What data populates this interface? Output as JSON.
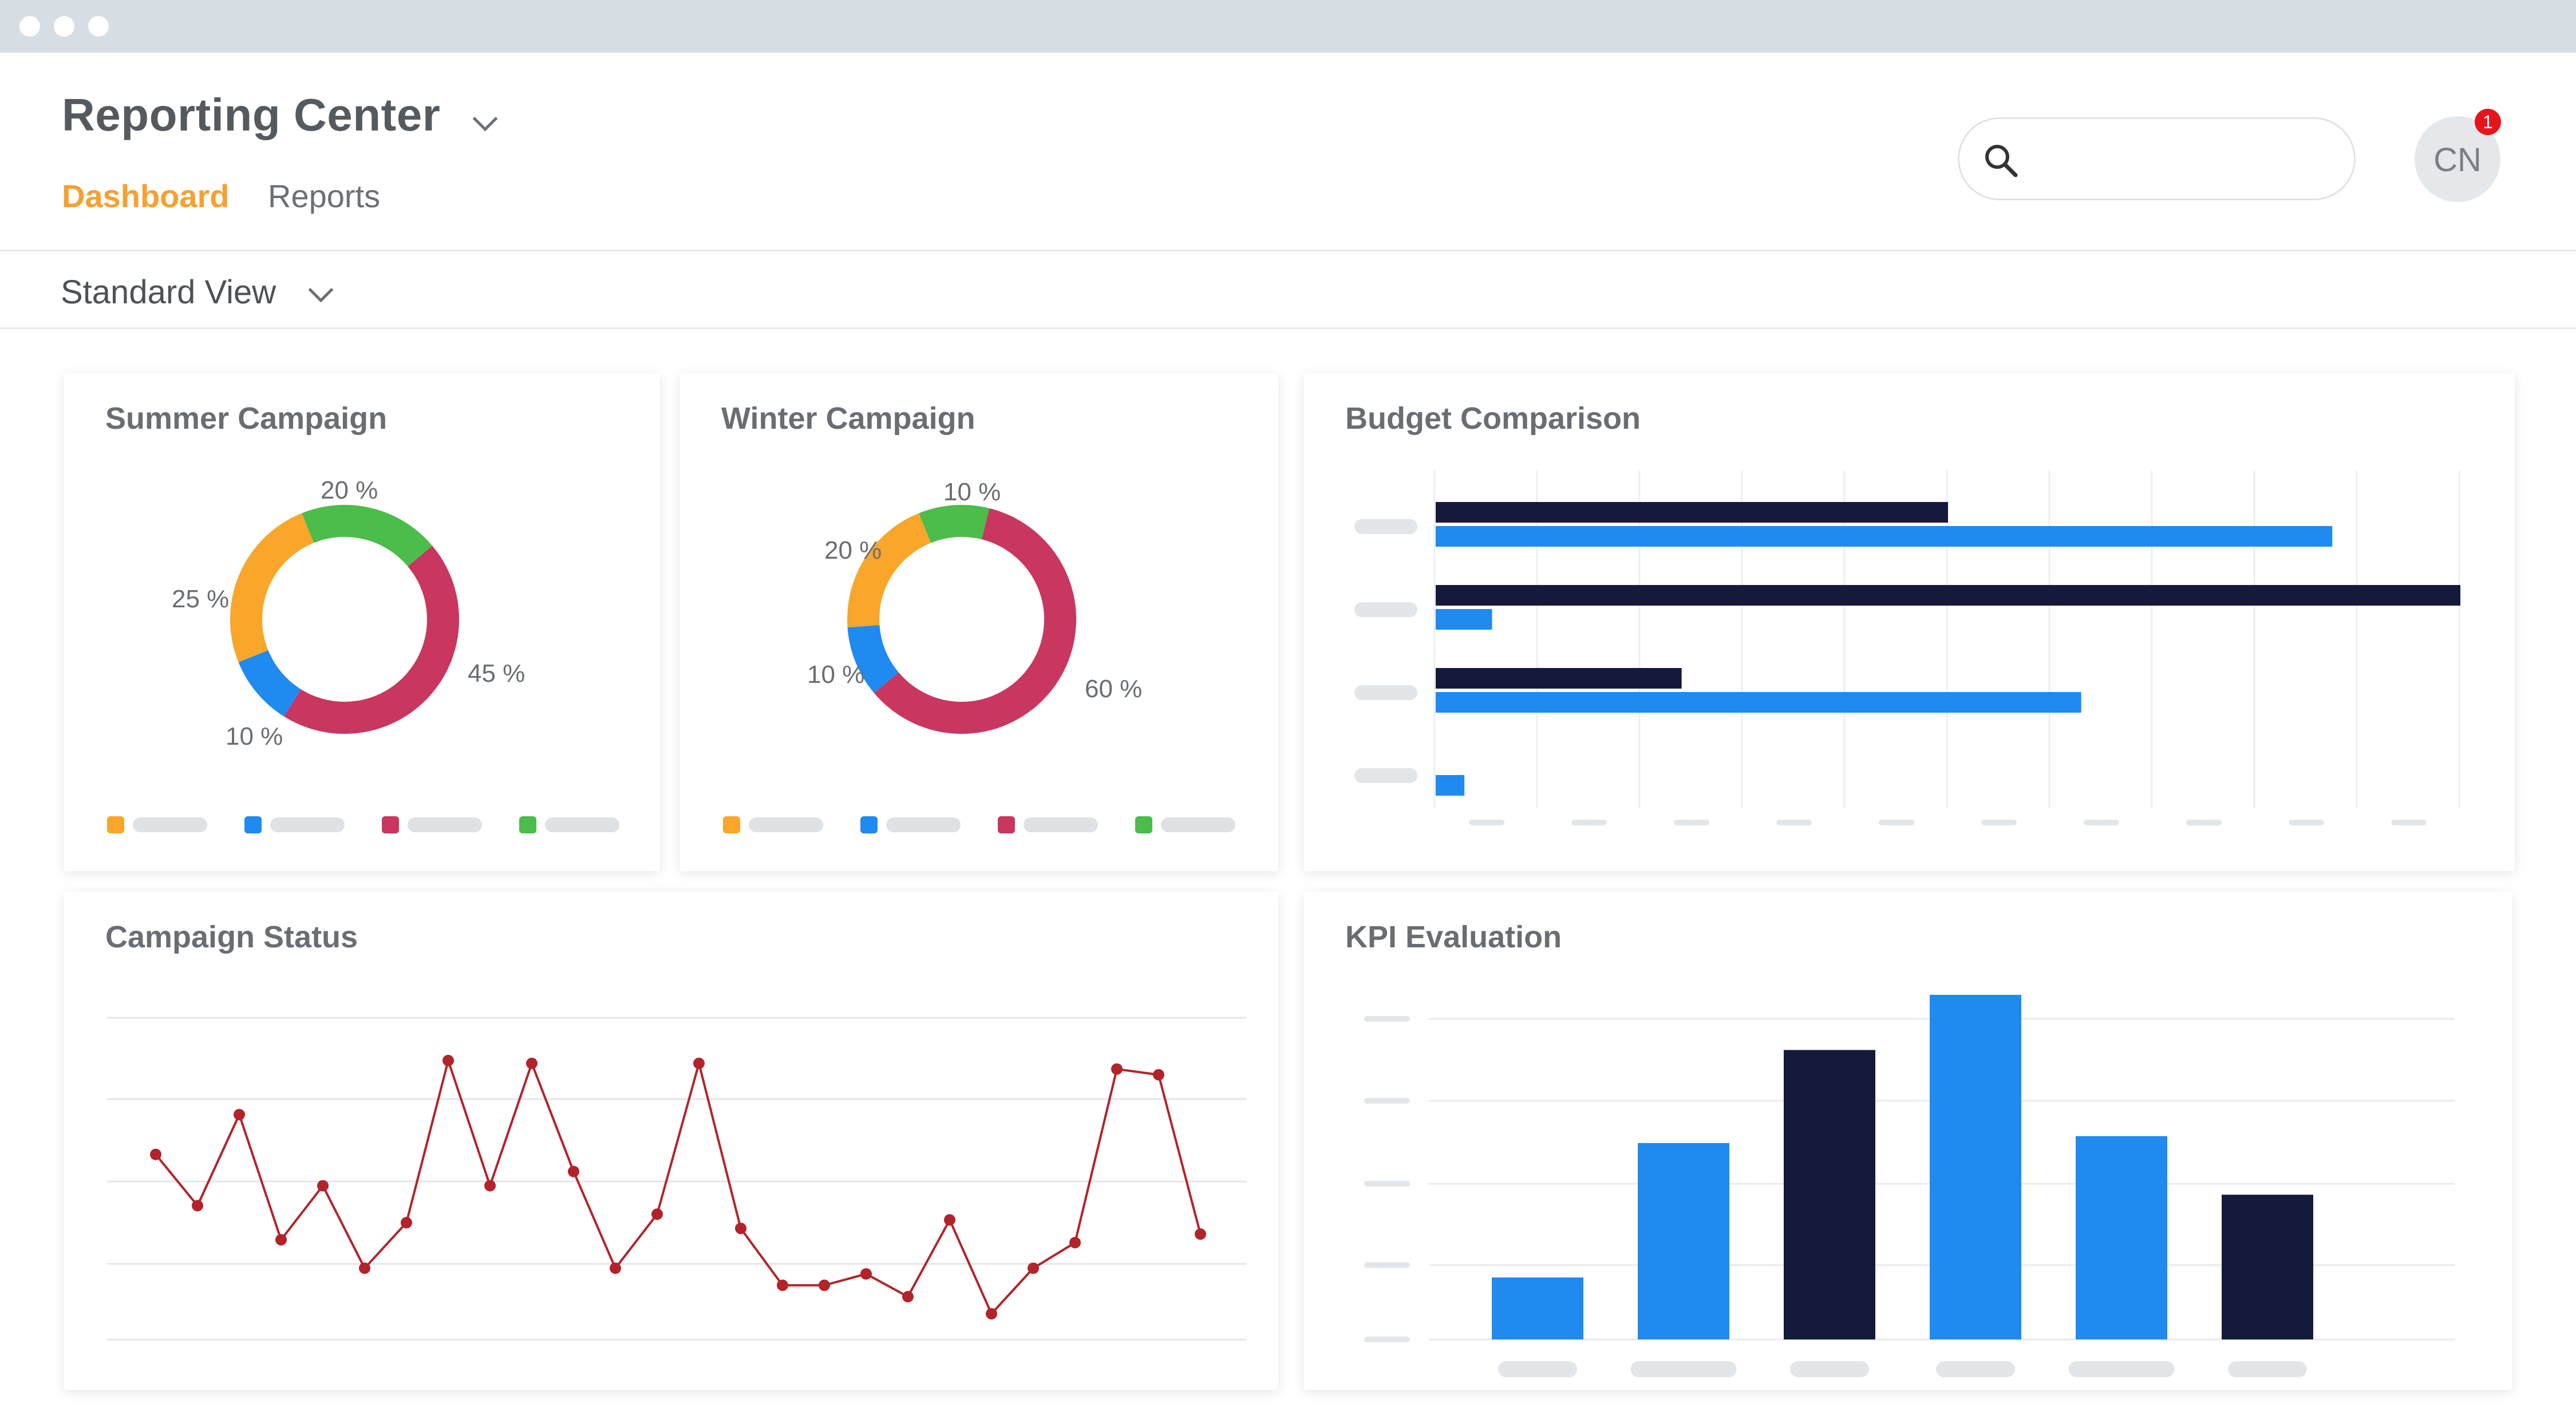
{
  "app": {
    "title": "Reporting Center",
    "tabs": [
      {
        "label": "Dashboard",
        "active": true
      },
      {
        "label": "Reports",
        "active": false
      }
    ]
  },
  "search": {
    "placeholder": "",
    "value": ""
  },
  "user": {
    "initials": "CN",
    "notification_count": "1"
  },
  "view": {
    "label": "Standard View"
  },
  "icons": {
    "search": "search-icon",
    "chevron": "chevron-down-icon"
  },
  "colors": {
    "accent": "#f7a030",
    "orange": "#f9a62b",
    "blue": "#1f8aef",
    "crimson": "#c9365f",
    "green": "#4cbc4b",
    "navy": "#131a3c",
    "line": "#b3232a"
  },
  "cards": {
    "summer": {
      "title": "Summer Campaign"
    },
    "winter": {
      "title": "Winter Campaign"
    },
    "budget": {
      "title": "Budget Comparison"
    },
    "status": {
      "title": "Campaign Status"
    },
    "kpi": {
      "title": "KPI Evaluation"
    }
  },
  "chart_data": [
    {
      "id": "summer",
      "type": "pie",
      "title": "Summer Campaign",
      "slices": [
        {
          "label": "20 %",
          "value": 20,
          "color": "#4cbc4b"
        },
        {
          "label": "45 %",
          "value": 45,
          "color": "#c9365f"
        },
        {
          "label": "10 %",
          "value": 10,
          "color": "#1f8aef"
        },
        {
          "label": "25 %",
          "value": 25,
          "color": "#f9a62b"
        }
      ]
    },
    {
      "id": "winter",
      "type": "pie",
      "title": "Winter Campaign",
      "slices": [
        {
          "label": "10 %",
          "value": 10,
          "color": "#4cbc4b"
        },
        {
          "label": "60 %",
          "value": 60,
          "color": "#c9365f"
        },
        {
          "label": "10 %",
          "value": 10,
          "color": "#1f8aef"
        },
        {
          "label": "20 %",
          "value": 20,
          "color": "#f9a62b"
        }
      ]
    },
    {
      "id": "budget",
      "type": "bar",
      "title": "Budget Comparison",
      "orientation": "horizontal",
      "xlim": [
        0,
        100
      ],
      "grid": true,
      "series": [
        {
          "color": "#131a3c",
          "values": [
            50,
            100,
            24,
            0
          ]
        },
        {
          "color": "#1f8aef",
          "values": [
            87.5,
            5.5,
            63,
            2.8
          ]
        }
      ]
    },
    {
      "id": "status",
      "type": "line",
      "title": "Campaign Status",
      "ylim": [
        0,
        100
      ],
      "grid": true,
      "color": "#b3232a",
      "values": [
        59,
        41,
        73,
        29,
        48,
        19,
        35,
        92,
        48,
        91,
        53,
        19,
        38,
        91,
        33,
        13,
        13,
        17,
        9,
        36,
        3,
        19,
        28,
        89,
        87,
        31
      ]
    },
    {
      "id": "kpi",
      "type": "bar",
      "title": "KPI Evaluation",
      "ylim": [
        0,
        100
      ],
      "grid": true,
      "values": [
        18,
        57,
        84,
        100,
        59,
        42
      ],
      "colors": [
        "#1f8aef",
        "#1f8aef",
        "#131a3c",
        "#1f8aef",
        "#1f8aef",
        "#131a3c"
      ]
    }
  ]
}
